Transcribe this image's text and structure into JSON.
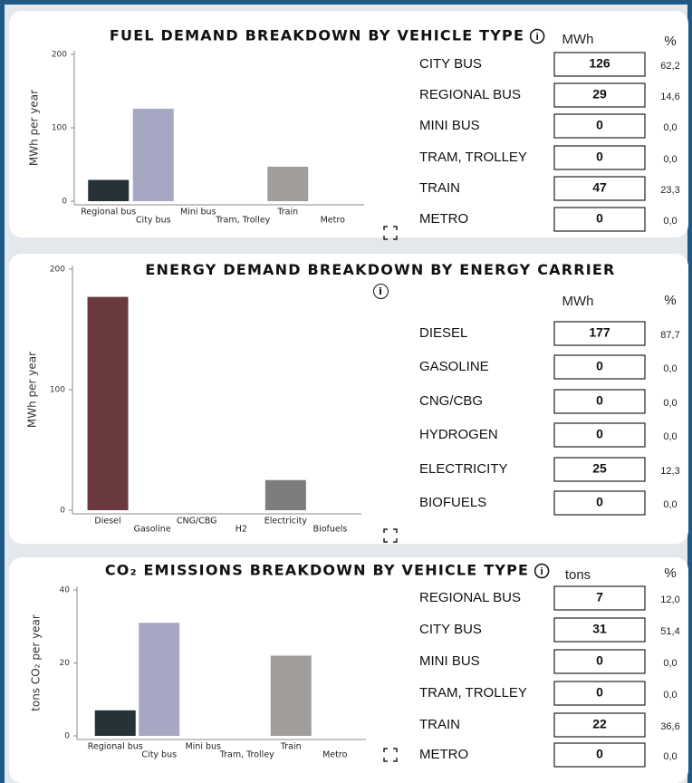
{
  "chart_data": [
    {
      "type": "bar",
      "title": "FUEL DEMAND BREAKDOWN BY VEHICLE TYPE",
      "ylabel": "MWh per year",
      "categories": [
        "Regional bus",
        "City bus",
        "Mini bus",
        "Tram, Trolley",
        "Train",
        "Metro"
      ],
      "values": [
        29,
        126,
        0,
        0,
        47,
        0
      ],
      "colors": [
        "#263238",
        "#a6a8c3",
        "#8a8a8a",
        "#8a8a8a",
        "#a09d9a",
        "#8a8a8a"
      ],
      "ylim": [
        0,
        200
      ],
      "yticks": [
        0,
        100,
        200
      ]
    },
    {
      "type": "bar",
      "title": "ENERGY DEMAND BREAKDOWN BY ENERGY CARRIER",
      "ylabel": "MWh per year",
      "categories": [
        "Diesel",
        "Gasoline",
        "CNG/CBG",
        "H2",
        "Electricity",
        "Biofuels"
      ],
      "values": [
        177,
        0,
        0,
        0,
        25,
        0
      ],
      "colors": [
        "#6b3a3f",
        "#8a8a8a",
        "#8a8a8a",
        "#8a8a8a",
        "#7d7d7d",
        "#8a8a8a"
      ],
      "ylim": [
        0,
        200
      ],
      "yticks": [
        0,
        100,
        200
      ]
    },
    {
      "type": "bar",
      "title": "CO₂ EMISSIONS BREAKDOWN BY VEHICLE TYPE",
      "ylabel": "tons CO₂ per year",
      "categories": [
        "Regional bus",
        "City bus",
        "Mini bus",
        "Tram, Trolley",
        "Train",
        "Metro"
      ],
      "values": [
        7,
        31,
        0,
        0,
        22,
        0
      ],
      "colors": [
        "#263238",
        "#a6a8c3",
        "#8a8a8a",
        "#8a8a8a",
        "#a09d9a",
        "#8a8a8a"
      ],
      "ylim": [
        0,
        40
      ],
      "yticks": [
        0,
        20,
        40
      ]
    }
  ],
  "tables": [
    {
      "headers": [
        "MWh",
        "%"
      ],
      "rows": [
        [
          "CITY BUS",
          126,
          "62,2"
        ],
        [
          "REGIONAL BUS",
          29,
          "14,6"
        ],
        [
          "MINI BUS",
          0,
          "0,0"
        ],
        [
          "TRAM, TROLLEY",
          0,
          "0,0"
        ],
        [
          "TRAIN",
          47,
          "23,3"
        ],
        [
          "METRO",
          0,
          "0,0"
        ]
      ]
    },
    {
      "headers": [
        "MWh",
        "%"
      ],
      "rows": [
        [
          "DIESEL",
          177,
          "87,7"
        ],
        [
          "GASOLINE",
          0,
          "0,0"
        ],
        [
          "CNG/CBG",
          0,
          "0,0"
        ],
        [
          "HYDROGEN",
          0,
          "0,0"
        ],
        [
          "ELECTRICITY",
          25,
          "12,3"
        ],
        [
          "BIOFUELS",
          0,
          "0,0"
        ]
      ]
    },
    {
      "headers": [
        "tons",
        "%"
      ],
      "rows": [
        [
          "REGIONAL BUS",
          7,
          "12,0"
        ],
        [
          "CITY BUS",
          31,
          "51,4"
        ],
        [
          "MINI BUS",
          0,
          "0,0"
        ],
        [
          "TRAM, TROLLEY",
          0,
          "0,0"
        ],
        [
          "TRAIN",
          22,
          "36,6"
        ],
        [
          "METRO",
          0,
          "0,0"
        ]
      ]
    }
  ]
}
